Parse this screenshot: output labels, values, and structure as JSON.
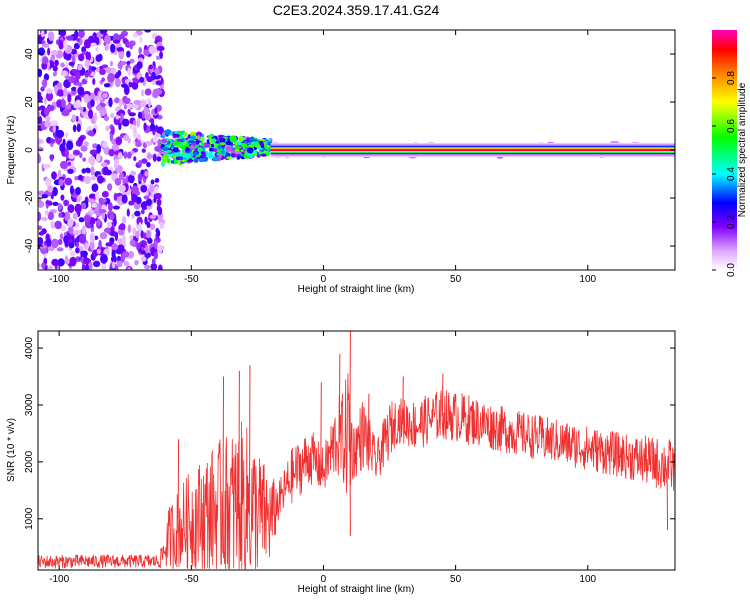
{
  "title": "C2E3.2024.359.17.41.G24",
  "chart_data": [
    {
      "type": "heatmap",
      "xlabel": "Height of straight line (km)",
      "ylabel": "Frequency (Hz)",
      "xlim": [
        -108,
        133
      ],
      "ylim": [
        -50,
        50
      ],
      "xticks": [
        -100,
        -50,
        0,
        50,
        100
      ],
      "yticks": [
        -40,
        -20,
        0,
        20,
        40
      ],
      "colorbar": {
        "label": "Normalized spectral amplitude",
        "range": [
          0.0,
          1.0
        ],
        "ticks": [
          0.0,
          0.2,
          0.4,
          0.6,
          0.8
        ],
        "colors": [
          "#ffffff",
          "#e0a6ff",
          "#7f00ff",
          "#0000ff",
          "#00ffff",
          "#00ff00",
          "#ffff00",
          "#ff8000",
          "#ff0000",
          "#ff00c0"
        ]
      },
      "regions": [
        {
          "x_range": [
            -108,
            -61
          ],
          "freq_range": [
            -50,
            50
          ],
          "amplitude": 0.15,
          "description_level": "noise"
        },
        {
          "x_range": [
            -61,
            -20
          ],
          "freq_range": [
            -5,
            6
          ],
          "amplitude": 0.45
        },
        {
          "x_range": [
            -20,
            133
          ],
          "freq_range": [
            -1,
            1
          ],
          "amplitude": 0.9
        }
      ]
    },
    {
      "type": "line",
      "xlabel": "Height of straight line (km)",
      "ylabel": "SNR (10 * v/v)",
      "xlim": [
        -108,
        133
      ],
      "ylim": [
        100,
        4300
      ],
      "xticks": [
        -100,
        -50,
        0,
        50,
        100
      ],
      "yticks": [
        1000,
        2000,
        3000,
        4000
      ],
      "color": "#f03030",
      "series": [
        {
          "x": [
            -108,
            -90,
            -75,
            -62,
            -58,
            -50,
            -40,
            -30,
            -20,
            -17,
            -12,
            -5,
            0,
            5,
            8,
            10,
            11,
            15,
            20,
            25,
            28,
            35,
            45,
            55,
            70,
            85,
            100,
            115,
            125,
            133
          ],
          "base": [
            230,
            240,
            240,
            240,
            650,
            900,
            1050,
            1100,
            900,
            1250,
            1700,
            2050,
            1800,
            2350,
            2300,
            2500,
            2100,
            2450,
            1950,
            2500,
            2700,
            2600,
            2800,
            2700,
            2500,
            2350,
            2200,
            2050,
            1950,
            1850
          ],
          "amp": [
            120,
            120,
            120,
            120,
            600,
            900,
            1200,
            1500,
            800,
            350,
            500,
            500,
            400,
            700,
            900,
            1600,
            500,
            650,
            350,
            500,
            400,
            450,
            450,
            450,
            400,
            400,
            400,
            400,
            450,
            500
          ],
          "peaks": [
            {
              "x": -55,
              "y": 2400
            },
            {
              "x": -38,
              "y": 3500
            },
            {
              "x": -32,
              "y": 3600
            },
            {
              "x": -28,
              "y": 3700
            },
            {
              "x": -1,
              "y": 3400
            },
            {
              "x": 6,
              "y": 3900
            },
            {
              "x": 10,
              "y": 4300
            },
            {
              "x": 17,
              "y": 3200
            },
            {
              "x": 30,
              "y": 3500
            },
            {
              "x": 45,
              "y": 3550
            },
            {
              "x": 10,
              "y": 700
            },
            {
              "x": 130,
              "y": 800
            }
          ]
        }
      ]
    }
  ]
}
